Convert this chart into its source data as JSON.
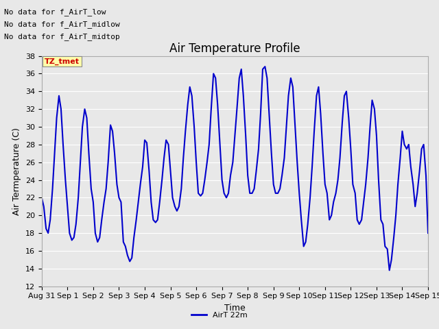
{
  "title": "Air Temperature Profile",
  "xlabel": "Time",
  "ylabel": "Air Termperature (C)",
  "ylim": [
    12,
    38
  ],
  "yticks": [
    12,
    14,
    16,
    18,
    20,
    22,
    24,
    26,
    28,
    30,
    32,
    34,
    36,
    38
  ],
  "line_color": "#0000CC",
  "line_width": 1.5,
  "legend_label": "AirT 22m",
  "annotations_text": [
    "No data for f_AirT_low",
    "No data for f_AirT_midlow",
    "No data for f_AirT_midtop"
  ],
  "annotation_color": "#000000",
  "annotation_fontsize": 8,
  "tz_label": "TZ_tmet",
  "tz_label_color": "#CC0000",
  "tz_box_color": "#FFFFAA",
  "background_color": "#E8E8E8",
  "title_fontsize": 12,
  "axis_label_fontsize": 9,
  "tick_fontsize": 8,
  "x_tick_labels": [
    "Aug 31",
    "Sep 1",
    "Sep 2",
    "Sep 3",
    "Sep 4",
    "Sep 5",
    "Sep 6",
    "Sep 7",
    "Sep 8",
    "Sep 9",
    "Sep 10",
    "Sep 11",
    "Sep 12",
    "Sep 13",
    "Sep 14",
    "Sep 15"
  ],
  "data_x": [
    0.0,
    0.08,
    0.17,
    0.25,
    0.33,
    0.42,
    0.5,
    0.58,
    0.67,
    0.75,
    0.83,
    0.92,
    1.0,
    1.08,
    1.17,
    1.25,
    1.33,
    1.42,
    1.5,
    1.58,
    1.67,
    1.75,
    1.83,
    1.92,
    2.0,
    2.08,
    2.17,
    2.25,
    2.33,
    2.42,
    2.5,
    2.58,
    2.67,
    2.75,
    2.83,
    2.92,
    3.0,
    3.08,
    3.17,
    3.25,
    3.33,
    3.42,
    3.5,
    3.58,
    3.67,
    3.75,
    3.83,
    3.92,
    4.0,
    4.08,
    4.17,
    4.25,
    4.33,
    4.42,
    4.5,
    4.58,
    4.67,
    4.75,
    4.83,
    4.92,
    5.0,
    5.08,
    5.17,
    5.25,
    5.33,
    5.42,
    5.5,
    5.58,
    5.67,
    5.75,
    5.83,
    5.92,
    6.0,
    6.08,
    6.17,
    6.25,
    6.33,
    6.42,
    6.5,
    6.58,
    6.67,
    6.75,
    6.83,
    6.92,
    7.0,
    7.08,
    7.17,
    7.25,
    7.33,
    7.42,
    7.5,
    7.58,
    7.67,
    7.75,
    7.83,
    7.92,
    8.0,
    8.08,
    8.17,
    8.25,
    8.33,
    8.42,
    8.5,
    8.58,
    8.67,
    8.75,
    8.83,
    8.92,
    9.0,
    9.08,
    9.17,
    9.25,
    9.33,
    9.42,
    9.5,
    9.58,
    9.67,
    9.75,
    9.83,
    9.92,
    10.0,
    10.08,
    10.17,
    10.25,
    10.33,
    10.42,
    10.5,
    10.58,
    10.67,
    10.75,
    10.83,
    10.92,
    11.0,
    11.08,
    11.17,
    11.25,
    11.33,
    11.42,
    11.5,
    11.58,
    11.67,
    11.75,
    11.83,
    11.92,
    12.0,
    12.08,
    12.17,
    12.25,
    12.33,
    12.42,
    12.5,
    12.58,
    12.67,
    12.75,
    12.83,
    12.92,
    13.0,
    13.08,
    13.17,
    13.25,
    13.33,
    13.42,
    13.5,
    13.58,
    13.67,
    13.75,
    13.83,
    13.92,
    14.0,
    14.08,
    14.17,
    14.25,
    14.33,
    14.42,
    14.5,
    14.58,
    14.67,
    14.75,
    14.83,
    14.92,
    15.0
  ],
  "data_y": [
    22.0,
    21.0,
    18.5,
    18.0,
    19.5,
    23.0,
    27.0,
    31.0,
    33.5,
    32.0,
    28.0,
    24.0,
    21.0,
    18.0,
    17.2,
    17.5,
    19.0,
    22.0,
    26.0,
    30.0,
    32.0,
    31.0,
    27.0,
    23.0,
    21.5,
    18.0,
    17.0,
    17.5,
    19.5,
    21.5,
    23.0,
    26.0,
    30.2,
    29.5,
    27.0,
    23.5,
    22.0,
    21.5,
    17.0,
    16.5,
    15.5,
    14.8,
    15.2,
    17.5,
    19.5,
    21.5,
    23.5,
    25.5,
    28.5,
    28.2,
    25.0,
    21.5,
    19.5,
    19.2,
    19.5,
    21.5,
    24.0,
    26.5,
    28.5,
    28.0,
    25.0,
    22.0,
    21.0,
    20.5,
    21.0,
    23.0,
    26.5,
    29.5,
    32.5,
    34.5,
    33.5,
    30.0,
    26.0,
    22.5,
    22.2,
    22.5,
    24.0,
    26.0,
    28.0,
    32.0,
    36.0,
    35.5,
    32.5,
    28.0,
    24.0,
    22.5,
    22.0,
    22.5,
    24.5,
    26.0,
    29.0,
    32.0,
    35.5,
    36.5,
    33.5,
    29.0,
    24.5,
    22.5,
    22.5,
    23.0,
    25.0,
    27.5,
    31.5,
    36.5,
    36.8,
    35.5,
    31.5,
    27.0,
    23.5,
    22.5,
    22.5,
    23.0,
    24.5,
    26.5,
    30.0,
    33.5,
    35.5,
    34.5,
    30.5,
    26.0,
    22.5,
    19.5,
    16.5,
    17.0,
    19.0,
    22.0,
    25.5,
    29.5,
    33.5,
    34.5,
    31.5,
    27.0,
    23.5,
    22.5,
    19.5,
    20.0,
    21.5,
    22.5,
    24.0,
    26.5,
    30.5,
    33.5,
    34.0,
    31.0,
    27.5,
    23.5,
    22.5,
    19.5,
    19.0,
    19.5,
    21.5,
    23.5,
    26.5,
    30.0,
    33.0,
    32.0,
    29.0,
    24.0,
    19.5,
    19.0,
    16.5,
    16.2,
    13.8,
    15.0,
    17.5,
    20.0,
    23.5,
    26.5,
    29.5,
    28.0,
    27.5,
    28.0,
    25.5,
    23.5,
    21.0,
    22.5,
    25.0,
    27.5,
    28.0,
    24.5,
    18.0
  ]
}
